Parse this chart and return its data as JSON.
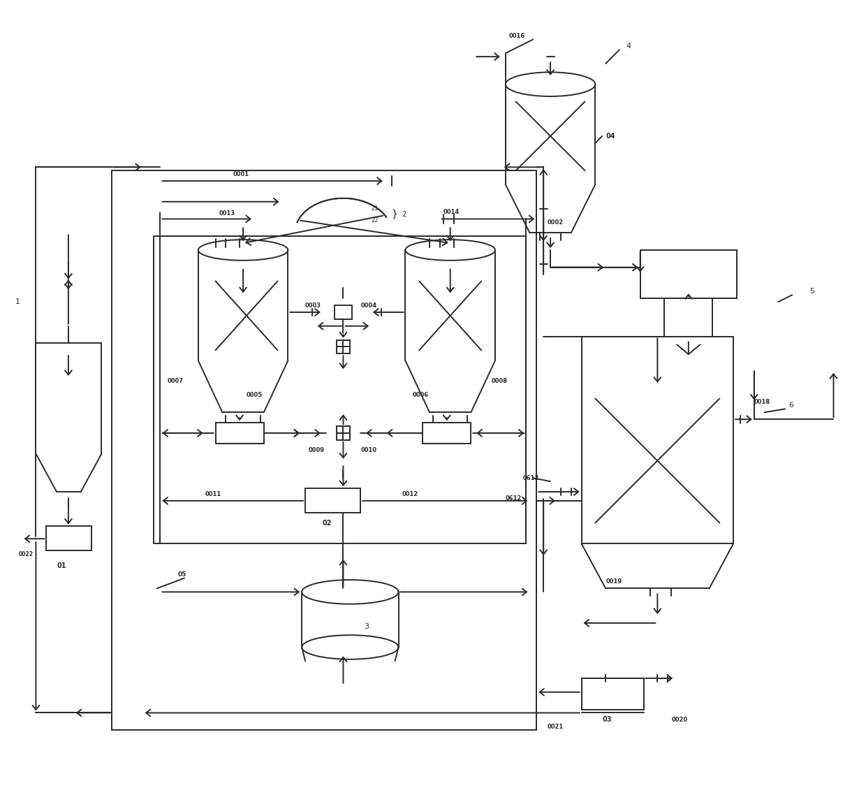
{
  "bg_color": "#ffffff",
  "line_color": "#2a2a2a",
  "lw": 1.4,
  "figsize": [
    12.4,
    11.51
  ],
  "dpi": 100
}
